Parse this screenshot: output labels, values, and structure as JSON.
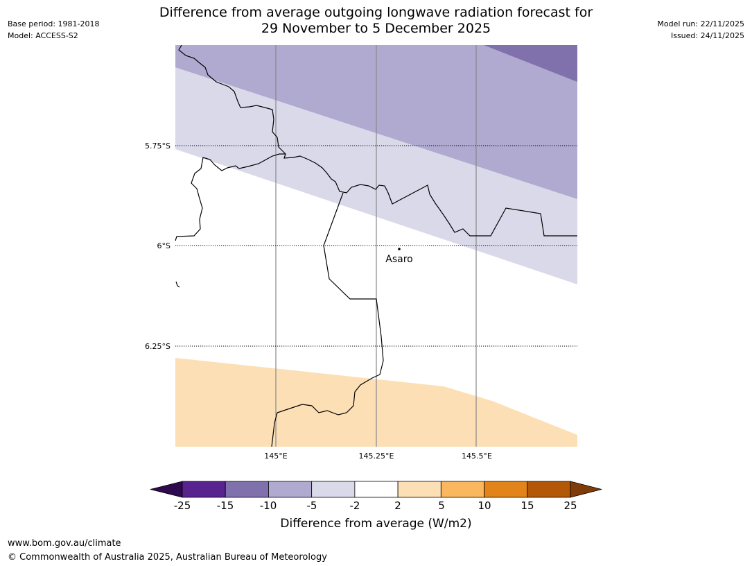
{
  "header": {
    "title_line1": "Difference from average outgoing longwave radiation forecast for",
    "title_line2": "29 November to 5 December 2025",
    "base_period": "Base period: 1981-2018",
    "model": "Model: ACCESS-S2",
    "model_run": "Model run: 22/11/2025",
    "issued": "Issued: 24/11/2025"
  },
  "map": {
    "lat_labels": [
      "5.75°S",
      "6°S",
      "6.25°S"
    ],
    "lon_labels": [
      "145°E",
      "145.25°E",
      "145.5°E"
    ],
    "place": {
      "name": "Asaro",
      "icon": "dot-marker-icon"
    }
  },
  "colorbar": {
    "title": "Difference from average (W/m2)",
    "tick_labels": [
      "-25",
      "-15",
      "-10",
      "-5",
      "-2",
      "2",
      "5",
      "10",
      "15",
      "25"
    ],
    "colors": [
      "#58228f",
      "#8071ad",
      "#b0a9d0",
      "#d9d9ea",
      "#ffffff",
      "#fcdfb5",
      "#fab75e",
      "#e3841a",
      "#b35807"
    ],
    "under_color": "#2e0a4e",
    "over_color": "#7f3b08"
  },
  "footer": {
    "url": "www.bom.gov.au/climate",
    "copyright": "© Commonwealth of Australia 2025, Australian Bureau of Meteorology"
  }
}
